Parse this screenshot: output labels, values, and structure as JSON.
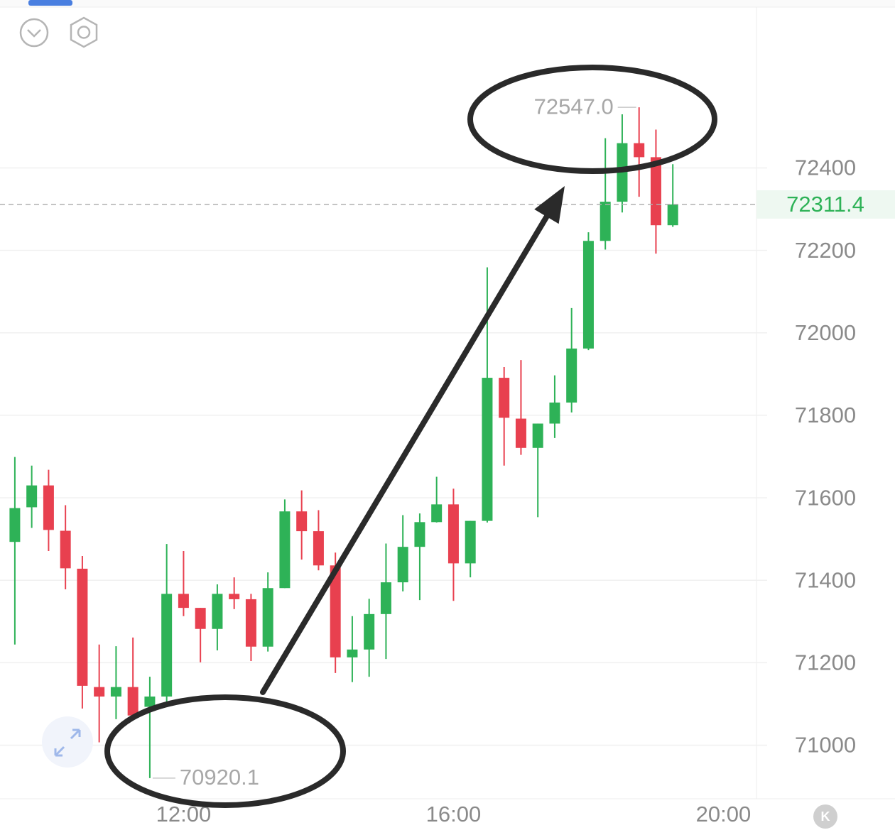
{
  "chart_data": {
    "type": "candlestick",
    "x": [
      9.5,
      9.75,
      10,
      10.25,
      10.5,
      10.75,
      11,
      11.25,
      11.5,
      11.75,
      12,
      12.25,
      12.5,
      12.75,
      13,
      13.25,
      13.5,
      13.75,
      14,
      14.25,
      14.5,
      14.75,
      15,
      15.25,
      15.5,
      15.75,
      16,
      16.25,
      16.5,
      16.75,
      17,
      17.25,
      17.5,
      17.75,
      18,
      18.25,
      18.5,
      18.75,
      19,
      19.25
    ],
    "open": [
      71493,
      71577,
      71630,
      71520,
      71428,
      71141,
      71118,
      71141,
      71093,
      71118,
      71367,
      71333,
      71282,
      71367,
      71354,
      71239,
      71381,
      71567,
      71519,
      71436,
      71213,
      71232,
      71318,
      71395,
      71481,
      71541,
      71584,
      71441,
      71544,
      71891,
      71792,
      71721,
      71780,
      71831,
      71962,
      72223,
      72318,
      72460,
      72426,
      72261
    ],
    "high": [
      71699,
      71678,
      71668,
      71582,
      71459,
      71244,
      71240,
      71261,
      71166,
      71488,
      71471,
      71333,
      71390,
      71407,
      71367,
      71419,
      71596,
      71618,
      71570,
      71467,
      71313,
      71355,
      71489,
      71558,
      71562,
      71651,
      71622,
      71544,
      72159,
      71917,
      71934,
      71780,
      71897,
      72060,
      72244,
      72472,
      72530,
      72547.0,
      72493,
      72409
    ],
    "low": [
      71244,
      71527,
      71471,
      71378,
      71089,
      71007,
      71063,
      71063,
      70920.1,
      71106,
      71313,
      71201,
      71230,
      71330,
      71204,
      71227,
      71381,
      71450,
      71424,
      71175,
      71153,
      71166,
      71209,
      71373,
      71352,
      71540,
      71350,
      71407,
      71540,
      71678,
      71704,
      71553,
      71745,
      71807,
      71958,
      72202,
      72292,
      72330,
      72192,
      72257
    ],
    "close": [
      71575,
      71630,
      71522,
      71429,
      71144,
      71118,
      71141,
      71072,
      71118,
      71367,
      71333,
      71282,
      71367,
      71354,
      71239,
      71381,
      71567,
      71519,
      71436,
      71213,
      71232,
      71318,
      71395,
      71481,
      71541,
      71584,
      71441,
      71544,
      71891,
      71794,
      71721,
      71780,
      71831,
      71962,
      72223,
      72318,
      72460,
      72426,
      72261,
      72311.4
    ],
    "up_color": "#2eb257",
    "down_color": "#e8404f",
    "xlim": [
      9.28,
      20.49
    ],
    "xticks": [
      {
        "value": 12,
        "label": "12:00"
      },
      {
        "value": 16,
        "label": "16:00"
      },
      {
        "value": 20,
        "label": "20:00"
      }
    ],
    "ylim": [
      70870,
      72790
    ],
    "yticks": [
      71000,
      71200,
      71400,
      71600,
      71800,
      72000,
      72200,
      72400
    ],
    "grid": true,
    "annotations": [
      {
        "x": 18.75,
        "y": 72547.0,
        "label": "72547.0",
        "side": "left"
      },
      {
        "x": 11.5,
        "y": 70920.1,
        "label": "70920.1",
        "side": "right"
      }
    ]
  },
  "ui": {
    "k_button": "K"
  }
}
